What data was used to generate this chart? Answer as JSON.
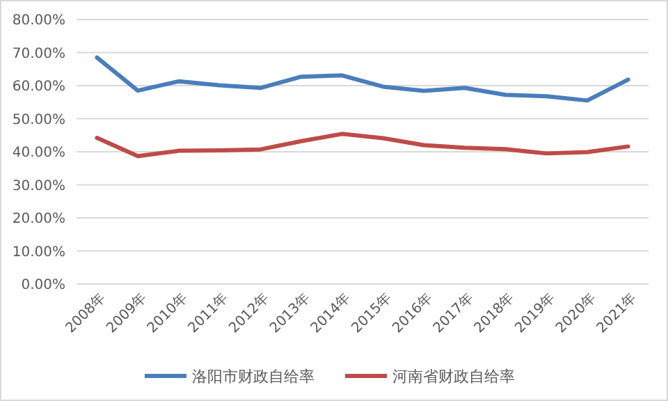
{
  "chart_data": {
    "type": "line",
    "categories": [
      "2008年",
      "2009年",
      "2010年",
      "2011年",
      "2012年",
      "2013年",
      "2014年",
      "2015年",
      "2016年",
      "2017年",
      "2018年",
      "2019年",
      "2020年",
      "2021年"
    ],
    "series": [
      {
        "name": "洛阳市财政自给率",
        "color": "#4a7ebb",
        "values": [
          68.5,
          58.5,
          61.3,
          60.1,
          59.3,
          62.7,
          63.1,
          59.7,
          58.4,
          59.3,
          57.2,
          56.8,
          55.5,
          61.8
        ]
      },
      {
        "name": "河南省财政自给率",
        "color": "#be4b48",
        "values": [
          44.2,
          38.7,
          40.3,
          40.4,
          40.7,
          43.2,
          45.4,
          44.1,
          42.0,
          41.2,
          40.8,
          39.5,
          39.9,
          41.6
        ]
      }
    ],
    "ylim": [
      0,
      80
    ],
    "yticks": [
      {
        "value": 0,
        "label": "0.00%"
      },
      {
        "value": 10,
        "label": "10.00%"
      },
      {
        "value": 20,
        "label": "20.00%"
      },
      {
        "value": 30,
        "label": "30.00%"
      },
      {
        "value": 40,
        "label": "40.00%"
      },
      {
        "value": 50,
        "label": "50.00%"
      },
      {
        "value": 60,
        "label": "60.00%"
      },
      {
        "value": 70,
        "label": "70.00%"
      },
      {
        "value": 80,
        "label": "80.00%"
      }
    ],
    "grid": "y",
    "legend": "bottom",
    "marker": "none",
    "line_style": "solid"
  }
}
